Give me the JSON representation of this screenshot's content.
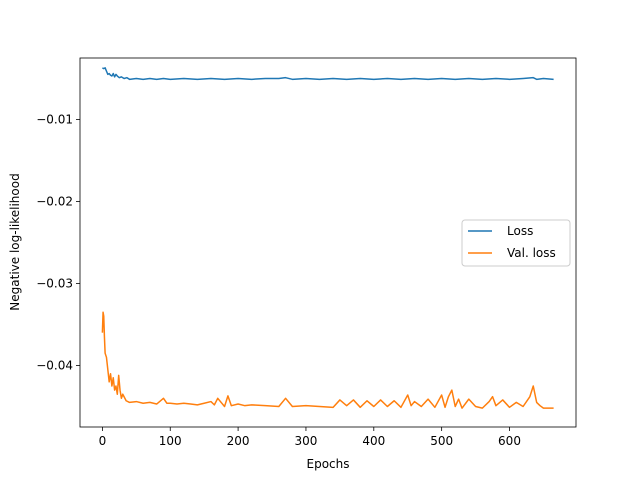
{
  "chart_data": {
    "type": "line",
    "xlabel": "Epochs",
    "ylabel": "Negative log-likelihood",
    "xlim": [
      -33,
      698
    ],
    "ylim": [
      -0.0475,
      -0.0025
    ],
    "xticks": [
      0,
      100,
      200,
      300,
      400,
      500,
      600
    ],
    "xtick_labels": [
      "0",
      "100",
      "200",
      "300",
      "400",
      "500",
      "600"
    ],
    "yticks": [
      -0.04,
      -0.03,
      -0.02,
      -0.01
    ],
    "ytick_labels": [
      "−0.04",
      "−0.03",
      "−0.02",
      "−0.01"
    ],
    "grid": false,
    "legend_position": "center-right",
    "series": [
      {
        "name": "Loss",
        "color": "#1f77b4",
        "x": [
          0,
          2,
          4,
          6,
          8,
          10,
          12,
          14,
          16,
          18,
          20,
          22,
          25,
          28,
          32,
          36,
          40,
          50,
          60,
          70,
          80,
          90,
          100,
          120,
          140,
          160,
          180,
          200,
          220,
          240,
          260,
          270,
          280,
          300,
          320,
          340,
          360,
          380,
          400,
          420,
          440,
          460,
          480,
          500,
          520,
          540,
          560,
          580,
          600,
          620,
          635,
          640,
          650,
          665
        ],
        "y": [
          -0.0037,
          -0.0038,
          -0.0037,
          -0.0041,
          -0.0045,
          -0.0044,
          -0.0046,
          -0.0047,
          -0.0044,
          -0.0048,
          -0.0045,
          -0.0047,
          -0.0049,
          -0.0048,
          -0.005,
          -0.0049,
          -0.0051,
          -0.005,
          -0.0051,
          -0.005,
          -0.0051,
          -0.005,
          -0.0051,
          -0.005,
          -0.0051,
          -0.005,
          -0.0051,
          -0.005,
          -0.0051,
          -0.005,
          -0.005,
          -0.0049,
          -0.0051,
          -0.005,
          -0.0051,
          -0.005,
          -0.0051,
          -0.005,
          -0.0051,
          -0.005,
          -0.0051,
          -0.005,
          -0.0051,
          -0.005,
          -0.0051,
          -0.005,
          -0.0051,
          -0.005,
          -0.0051,
          -0.005,
          -0.0049,
          -0.0051,
          -0.005,
          -0.0051
        ]
      },
      {
        "name": "Val. loss",
        "color": "#ff7f0e",
        "x": [
          0,
          1,
          2,
          3,
          4,
          6,
          8,
          10,
          12,
          14,
          16,
          18,
          20,
          22,
          24,
          26,
          28,
          30,
          35,
          40,
          50,
          60,
          70,
          80,
          90,
          95,
          100,
          110,
          120,
          130,
          140,
          150,
          160,
          165,
          170,
          180,
          185,
          190,
          200,
          210,
          220,
          240,
          260,
          270,
          280,
          300,
          320,
          340,
          350,
          360,
          370,
          380,
          390,
          400,
          410,
          420,
          430,
          440,
          450,
          455,
          460,
          470,
          480,
          490,
          500,
          505,
          510,
          515,
          520,
          525,
          530,
          540,
          550,
          560,
          570,
          575,
          580,
          590,
          600,
          610,
          620,
          630,
          635,
          640,
          645,
          650,
          660,
          665
        ],
        "y": [
          -0.036,
          -0.0335,
          -0.034,
          -0.0365,
          -0.0385,
          -0.039,
          -0.0405,
          -0.042,
          -0.041,
          -0.0425,
          -0.0415,
          -0.043,
          -0.0425,
          -0.0435,
          -0.0412,
          -0.043,
          -0.044,
          -0.0435,
          -0.0443,
          -0.0445,
          -0.0444,
          -0.0446,
          -0.0445,
          -0.0447,
          -0.044,
          -0.0446,
          -0.0446,
          -0.0447,
          -0.0446,
          -0.0447,
          -0.0448,
          -0.0446,
          -0.0444,
          -0.0448,
          -0.044,
          -0.045,
          -0.0437,
          -0.0449,
          -0.0447,
          -0.0449,
          -0.0448,
          -0.0449,
          -0.045,
          -0.044,
          -0.045,
          -0.0449,
          -0.045,
          -0.0451,
          -0.0442,
          -0.0449,
          -0.0442,
          -0.0451,
          -0.0443,
          -0.045,
          -0.0442,
          -0.045,
          -0.0443,
          -0.0451,
          -0.0436,
          -0.0449,
          -0.0444,
          -0.045,
          -0.0441,
          -0.0451,
          -0.0436,
          -0.0451,
          -0.0438,
          -0.043,
          -0.045,
          -0.0441,
          -0.0452,
          -0.0441,
          -0.045,
          -0.0452,
          -0.0444,
          -0.0438,
          -0.0449,
          -0.0442,
          -0.0451,
          -0.0445,
          -0.045,
          -0.0438,
          -0.0425,
          -0.0445,
          -0.0449,
          -0.0452,
          -0.0452,
          -0.0452
        ]
      }
    ]
  }
}
